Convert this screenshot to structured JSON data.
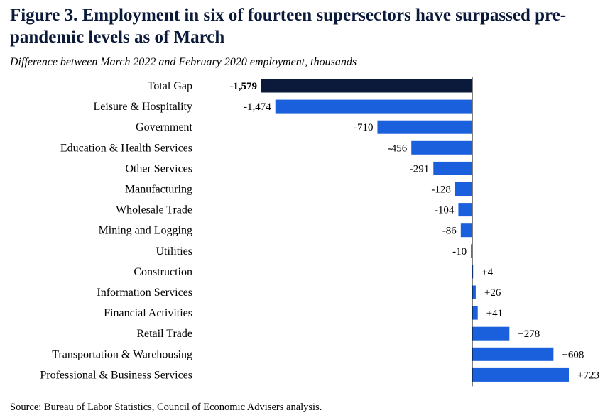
{
  "chart_data": {
    "type": "bar",
    "orientation": "horizontal",
    "title": "Figure 3. Employment in six of fourteen supersectors have surpassed pre-pandemic levels as of March",
    "subtitle": "Difference between March 2022 and February 2020 employment, thousands",
    "source": "Source: Bureau of Labor Statistics, Council of Economic Advisers analysis.",
    "categories": [
      "Total Gap",
      "Leisure & Hospitality",
      "Government",
      "Education & Health Services",
      "Other Services",
      "Manufacturing",
      "Wholesale Trade",
      "Mining and Logging",
      "Utilities",
      "Construction",
      "Information Services",
      "Financial Activities",
      "Retail Trade",
      "Transportation & Warehousing",
      "Professional & Business Services"
    ],
    "values": [
      -1579,
      -1474,
      -710,
      -456,
      -291,
      -128,
      -104,
      -86,
      -10,
      4,
      26,
      41,
      278,
      608,
      723
    ],
    "data_labels": [
      "-1,579",
      "-1,474",
      "-710",
      "-456",
      "-291",
      "-128",
      "-104",
      "-86",
      "-10",
      "+4",
      "+26",
      "+41",
      "+278",
      "+608",
      "+723"
    ],
    "colors": {
      "total": "#0b1a3a",
      "bar": "#1a5fdb",
      "axis": "#000000"
    },
    "xlim": [
      -1579,
      723
    ],
    "grid": false,
    "legend": "none"
  }
}
